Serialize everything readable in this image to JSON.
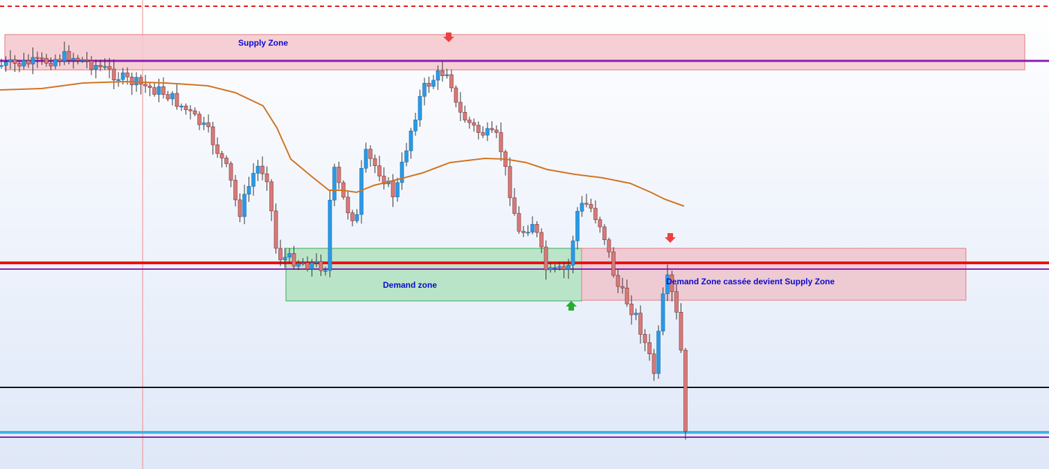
{
  "annotations": {
    "supply_zone": "Supply Zone",
    "demand_zone": "Demand zone",
    "broken_zone": "Demand Zone cassée devient Supply Zone"
  }
}
